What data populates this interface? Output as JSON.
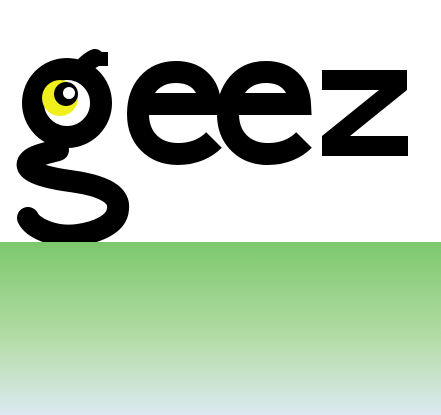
{
  "logo": {
    "wordmark": "geez",
    "text_color": "#000000",
    "moon_color": "#f0ef1c",
    "moon_dot_color": "#ffffff",
    "icon": "crescent-moon-icon"
  },
  "gradient": {
    "top_color": "#7cc86c",
    "middle_color": "#b3dca5",
    "bottom_color": "#dce9f1"
  }
}
